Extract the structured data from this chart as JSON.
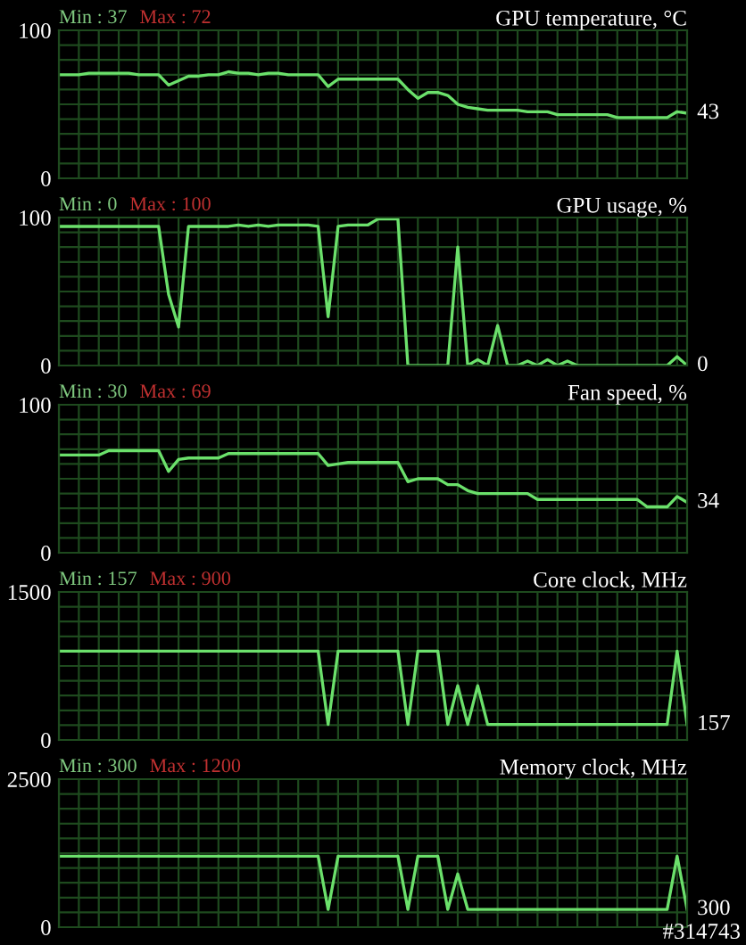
{
  "chart_data": [
    {
      "type": "line",
      "title": "GPU temperature, °C",
      "categories": [
        null,
        null,
        null,
        null,
        null,
        null,
        null,
        null,
        null,
        null,
        null,
        null,
        null,
        null,
        null,
        null,
        null,
        null,
        null,
        null,
        null,
        null,
        null,
        null,
        null,
        null,
        null,
        null,
        null,
        null,
        null,
        null,
        null,
        null,
        null,
        null,
        null,
        null,
        null,
        null,
        null,
        null,
        null,
        null,
        null,
        null,
        null,
        null,
        null,
        null,
        null,
        null,
        null,
        null,
        null,
        null,
        null,
        null,
        null,
        null,
        null,
        null,
        null,
        null
      ],
      "series": [
        {
          "color": "#6be06b",
          "values": [
            70,
            70,
            70,
            71,
            71,
            71,
            71,
            71,
            70,
            70,
            70,
            63,
            66,
            69,
            69,
            70,
            70,
            72,
            71,
            71,
            70,
            71,
            71,
            70,
            70,
            70,
            70,
            62,
            67,
            67,
            67,
            67,
            67,
            67,
            67,
            60,
            54,
            58,
            58,
            56,
            50,
            48,
            47,
            46,
            46,
            46,
            46,
            45,
            45,
            45,
            43,
            43,
            43,
            43,
            43,
            43,
            41,
            41,
            41,
            41,
            41,
            41,
            45,
            44
          ]
        }
      ],
      "ylim": [
        0,
        100
      ],
      "yticks": [
        0,
        {
          "value": 10,
          "label": null
        },
        {
          "value": 20,
          "label": null
        },
        {
          "value": 30,
          "label": null
        },
        {
          "value": 40,
          "label": null
        },
        {
          "value": 50,
          "label": null
        },
        {
          "value": 60,
          "label": null
        },
        {
          "value": 70,
          "label": null
        },
        {
          "value": 80,
          "label": null
        },
        {
          "value": 90,
          "label": null
        },
        100
      ],
      "grid": true,
      "tick_labels": "y",
      "annotations": [
        "Min : 37",
        "Max : 72",
        "43"
      ]
    },
    {
      "type": "line",
      "title": "GPU usage, %",
      "categories": [
        null,
        null,
        null,
        null,
        null,
        null,
        null,
        null,
        null,
        null,
        null,
        null,
        null,
        null,
        null,
        null,
        null,
        null,
        null,
        null,
        null,
        null,
        null,
        null,
        null,
        null,
        null,
        null,
        null,
        null,
        null,
        null,
        null,
        null,
        null,
        null,
        null,
        null,
        null,
        null,
        null,
        null,
        null,
        null,
        null,
        null,
        null,
        null,
        null,
        null,
        null,
        null,
        null,
        null,
        null,
        null,
        null,
        null,
        null,
        null,
        null,
        null,
        null,
        null
      ],
      "series": [
        {
          "color": "#6be06b",
          "values": [
            94,
            94,
            94,
            94,
            94,
            94,
            94,
            94,
            94,
            94,
            94,
            48,
            26,
            94,
            94,
            94,
            94,
            94,
            95,
            94,
            95,
            94,
            95,
            95,
            95,
            95,
            94,
            33,
            94,
            95,
            95,
            95,
            99,
            99,
            99,
            0,
            0,
            0,
            0,
            0,
            80,
            0,
            4,
            0,
            27,
            0,
            0,
            3,
            0,
            4,
            0,
            3,
            0,
            0,
            0,
            0,
            0,
            0,
            0,
            0,
            0,
            0,
            6,
            0
          ]
        }
      ],
      "ylim": [
        0,
        100
      ],
      "yticks": [
        0,
        {
          "value": 10,
          "label": null
        },
        {
          "value": 20,
          "label": null
        },
        {
          "value": 30,
          "label": null
        },
        {
          "value": 40,
          "label": null
        },
        {
          "value": 50,
          "label": null
        },
        {
          "value": 60,
          "label": null
        },
        {
          "value": 70,
          "label": null
        },
        {
          "value": 80,
          "label": null
        },
        {
          "value": 90,
          "label": null
        },
        100
      ],
      "grid": true,
      "tick_labels": "y",
      "annotations": [
        "Min : 0",
        "Max : 100",
        "0"
      ]
    },
    {
      "type": "line",
      "title": "Fan speed, %",
      "categories": [
        null,
        null,
        null,
        null,
        null,
        null,
        null,
        null,
        null,
        null,
        null,
        null,
        null,
        null,
        null,
        null,
        null,
        null,
        null,
        null,
        null,
        null,
        null,
        null,
        null,
        null,
        null,
        null,
        null,
        null,
        null,
        null,
        null,
        null,
        null,
        null,
        null,
        null,
        null,
        null,
        null,
        null,
        null,
        null,
        null,
        null,
        null,
        null,
        null,
        null,
        null,
        null,
        null,
        null,
        null,
        null,
        null,
        null,
        null,
        null,
        null,
        null,
        null,
        null
      ],
      "series": [
        {
          "color": "#6be06b",
          "values": [
            66,
            66,
            66,
            66,
            66,
            69,
            69,
            69,
            69,
            69,
            69,
            55,
            63,
            64,
            64,
            64,
            64,
            67,
            67,
            67,
            67,
            67,
            67,
            67,
            67,
            67,
            67,
            59,
            60,
            61,
            61,
            61,
            61,
            61,
            61,
            48,
            50,
            50,
            50,
            46,
            46,
            42,
            40,
            40,
            40,
            40,
            40,
            40,
            36,
            36,
            36,
            36,
            36,
            36,
            36,
            36,
            36,
            36,
            36,
            31,
            31,
            31,
            38,
            34
          ]
        }
      ],
      "ylim": [
        0,
        100
      ],
      "yticks": [
        0,
        {
          "value": 10,
          "label": null
        },
        {
          "value": 20,
          "label": null
        },
        {
          "value": 30,
          "label": null
        },
        {
          "value": 40,
          "label": null
        },
        {
          "value": 50,
          "label": null
        },
        {
          "value": 60,
          "label": null
        },
        {
          "value": 70,
          "label": null
        },
        {
          "value": 80,
          "label": null
        },
        {
          "value": 90,
          "label": null
        },
        100
      ],
      "grid": true,
      "tick_labels": "y",
      "annotations": [
        "Min : 30",
        "Max : 69",
        "34"
      ]
    },
    {
      "type": "line",
      "title": "Core clock, MHz",
      "categories": [
        null,
        null,
        null,
        null,
        null,
        null,
        null,
        null,
        null,
        null,
        null,
        null,
        null,
        null,
        null,
        null,
        null,
        null,
        null,
        null,
        null,
        null,
        null,
        null,
        null,
        null,
        null,
        null,
        null,
        null,
        null,
        null,
        null,
        null,
        null,
        null,
        null,
        null,
        null,
        null,
        null,
        null,
        null,
        null,
        null,
        null,
        null,
        null,
        null,
        null,
        null,
        null,
        null,
        null,
        null,
        null,
        null,
        null,
        null,
        null,
        null,
        null,
        null,
        null
      ],
      "series": [
        {
          "color": "#6be06b",
          "values": [
            900,
            900,
            900,
            900,
            900,
            900,
            900,
            900,
            900,
            900,
            900,
            900,
            900,
            900,
            900,
            900,
            900,
            900,
            900,
            900,
            900,
            900,
            900,
            900,
            900,
            900,
            900,
            157,
            900,
            900,
            900,
            900,
            900,
            900,
            900,
            157,
            900,
            900,
            900,
            157,
            550,
            157,
            550,
            157,
            157,
            157,
            157,
            157,
            157,
            157,
            157,
            157,
            157,
            157,
            157,
            157,
            157,
            157,
            157,
            157,
            157,
            157,
            900,
            157
          ]
        }
      ],
      "ylim": [
        0,
        1500
      ],
      "yticks": [
        0,
        {
          "value": 150,
          "label": null
        },
        {
          "value": 300,
          "label": null
        },
        {
          "value": 450,
          "label": null
        },
        {
          "value": 600,
          "label": null
        },
        {
          "value": 750,
          "label": null
        },
        {
          "value": 900,
          "label": null
        },
        {
          "value": 1050,
          "label": null
        },
        {
          "value": 1200,
          "label": null
        },
        {
          "value": 1350,
          "label": null
        },
        1500
      ],
      "grid": true,
      "tick_labels": "y",
      "annotations": [
        "Min : 157",
        "Max : 900",
        "157"
      ]
    },
    {
      "type": "line",
      "title": "Memory clock, MHz",
      "categories": [
        null,
        null,
        null,
        null,
        null,
        null,
        null,
        null,
        null,
        null,
        null,
        null,
        null,
        null,
        null,
        null,
        null,
        null,
        null,
        null,
        null,
        null,
        null,
        null,
        null,
        null,
        null,
        null,
        null,
        null,
        null,
        null,
        null,
        null,
        null,
        null,
        null,
        null,
        null,
        null,
        null,
        null,
        null,
        null,
        null,
        null,
        null,
        null,
        null,
        null,
        null,
        null,
        null,
        null,
        null,
        null,
        null,
        null,
        null,
        null,
        null,
        null,
        null,
        null
      ],
      "series": [
        {
          "color": "#6be06b",
          "values": [
            1200,
            1200,
            1200,
            1200,
            1200,
            1200,
            1200,
            1200,
            1200,
            1200,
            1200,
            1200,
            1200,
            1200,
            1200,
            1200,
            1200,
            1200,
            1200,
            1200,
            1200,
            1200,
            1200,
            1200,
            1200,
            1200,
            1200,
            300,
            1200,
            1200,
            1200,
            1200,
            1200,
            1200,
            1200,
            300,
            1200,
            1200,
            1200,
            300,
            900,
            300,
            300,
            300,
            300,
            300,
            300,
            300,
            300,
            300,
            300,
            300,
            300,
            300,
            300,
            300,
            300,
            300,
            300,
            300,
            300,
            300,
            1200,
            300
          ]
        }
      ],
      "ylim": [
        0,
        2500
      ],
      "yticks": [
        0,
        {
          "value": 250,
          "label": null
        },
        {
          "value": 500,
          "label": null
        },
        {
          "value": 750,
          "label": null
        },
        {
          "value": 1000,
          "label": null
        },
        {
          "value": 1250,
          "label": null
        },
        {
          "value": 1500,
          "label": null
        },
        {
          "value": 1750,
          "label": null
        },
        {
          "value": 2000,
          "label": null
        },
        {
          "value": 2250,
          "label": null
        },
        2500
      ],
      "grid": true,
      "tick_labels": "y",
      "annotations": [
        "Min : 300",
        "Max : 1200",
        "300",
        "#314743"
      ]
    }
  ]
}
